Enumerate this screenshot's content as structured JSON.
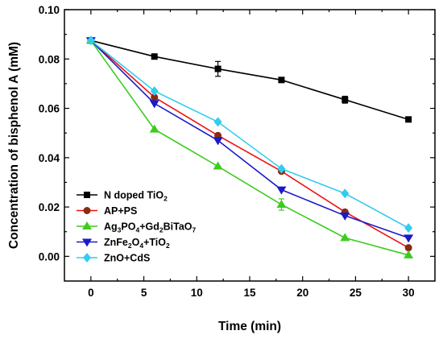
{
  "chart_data": {
    "type": "line",
    "xlabel": "Time (min)",
    "ylabel": "Concentration of bisphenol A (mM)",
    "xlim": [
      -2.5,
      32.5
    ],
    "ylim": [
      -0.01,
      0.1
    ],
    "xticks": [
      0,
      5,
      10,
      15,
      20,
      25,
      30
    ],
    "yticks": [
      0.0,
      0.02,
      0.04,
      0.06,
      0.08,
      0.1
    ],
    "ytick_labels": [
      "0.00",
      "0.02",
      "0.04",
      "0.06",
      "0.08",
      "0.10"
    ],
    "grid": false,
    "legend_position": "lower-left",
    "x": [
      0,
      6,
      12,
      18,
      24,
      30
    ],
    "series": [
      {
        "name_parts": [
          {
            "t": "N doped TiO"
          },
          {
            "t": "2",
            "sub": true
          }
        ],
        "color": "#000000",
        "marker": "square",
        "values": [
          0.0875,
          0.081,
          0.076,
          0.0715,
          0.0635,
          0.0555
        ],
        "errors": [
          0,
          0.0007,
          0.003,
          0.0007,
          0.0014,
          0.0006
        ]
      },
      {
        "name_parts": [
          {
            "t": "AP+PS"
          }
        ],
        "color": "#8b2a10",
        "line_color": "#ee1111",
        "marker": "circle",
        "values": [
          0.0875,
          0.0645,
          0.049,
          0.0345,
          0.018,
          0.0035
        ],
        "errors": [
          0,
          0,
          0,
          0,
          0,
          0
        ]
      },
      {
        "name_parts": [
          {
            "t": "Ag"
          },
          {
            "t": "3",
            "sub": true
          },
          {
            "t": "PO"
          },
          {
            "t": "4",
            "sub": true
          },
          {
            "t": "+Gd"
          },
          {
            "t": "2",
            "sub": true
          },
          {
            "t": "BiTaO"
          },
          {
            "t": "7",
            "sub": true
          }
        ],
        "color": "#3ccc1f",
        "marker": "triangle-up",
        "values": [
          0.0875,
          0.0515,
          0.0365,
          0.021,
          0.0075,
          0.0005
        ],
        "errors": [
          0,
          0,
          0,
          0.0023,
          0,
          0
        ]
      },
      {
        "name_parts": [
          {
            "t": "ZnFe"
          },
          {
            "t": "2",
            "sub": true
          },
          {
            "t": "O"
          },
          {
            "t": "4",
            "sub": true
          },
          {
            "t": "+TiO"
          },
          {
            "t": "2",
            "sub": true
          }
        ],
        "color": "#1a1ac8",
        "marker": "triangle-down",
        "values": [
          0.0875,
          0.062,
          0.047,
          0.027,
          0.0165,
          0.0075
        ],
        "errors": [
          0,
          0,
          0,
          0,
          0,
          0
        ]
      },
      {
        "name_parts": [
          {
            "t": "ZnO+CdS"
          }
        ],
        "color": "#33ccee",
        "marker": "diamond",
        "values": [
          0.0875,
          0.067,
          0.0545,
          0.0355,
          0.0255,
          0.0115
        ],
        "errors": [
          0,
          0,
          0,
          0,
          0,
          0
        ]
      }
    ]
  }
}
